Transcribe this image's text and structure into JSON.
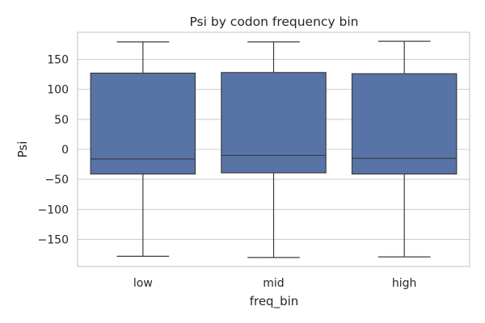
{
  "chart_data": {
    "type": "box",
    "title": "Psi by codon frequency bin",
    "xlabel": "freq_bin",
    "ylabel": "Psi",
    "categories": [
      "low",
      "mid",
      "high"
    ],
    "ylim": [
      -195,
      195
    ],
    "yticks": [
      150,
      100,
      50,
      0,
      -50,
      -100,
      -150
    ],
    "ytick_labels": [
      "150",
      "100",
      "50",
      "0",
      "−50",
      "−100",
      "−150"
    ],
    "box_color": "#5874a7",
    "line_color": "#3d3d3d",
    "grid": true,
    "boxes": [
      {
        "category": "low",
        "whisker_low": -178,
        "q1": -41,
        "median": -16,
        "q3": 127,
        "whisker_high": 179
      },
      {
        "category": "mid",
        "whisker_low": -180,
        "q1": -39,
        "median": -10,
        "q3": 128,
        "whisker_high": 179
      },
      {
        "category": "high",
        "whisker_low": -179,
        "q1": -41,
        "median": -15,
        "q3": 126,
        "whisker_high": 180
      }
    ]
  }
}
